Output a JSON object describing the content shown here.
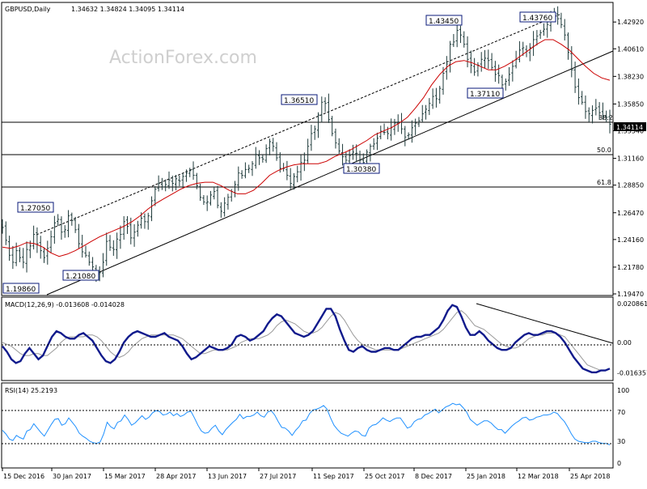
{
  "chart_data": [
    {
      "type": "candlestick",
      "symbol_header": "GBPUSD,Daily",
      "ohlc_header": "1.34632 1.34824 1.34095 1.34114",
      "watermark": "ActionForex.com",
      "current_price_label": "1.34114",
      "ylim": [
        1.1947,
        1.4426
      ],
      "y_ticks": [
        "1.42920",
        "1.40610",
        "1.38230",
        "1.35850",
        "1.33540",
        "1.31160",
        "1.28850",
        "1.26470",
        "1.24160",
        "1.21780",
        "1.19470"
      ],
      "x_ticks": [
        "15 Dec 2016",
        "30 Jan 2017",
        "15 Mar 2017",
        "28 Apr 2017",
        "13 Jun 2017",
        "27 Jul 2017",
        "11 Sep 2017",
        "25 Oct 2017",
        "8 Dec 2017",
        "25 Jan 2018",
        "12 Mar 2018",
        "25 Apr 2018"
      ],
      "price_labels": [
        {
          "text": "1.19860",
          "value": 1.1986
        },
        {
          "text": "1.27050",
          "value": 1.2705
        },
        {
          "text": "1.21080",
          "value": 1.2108
        },
        {
          "text": "1.36510",
          "value": 1.3651
        },
        {
          "text": "1.30380",
          "value": 1.3038
        },
        {
          "text": "1.43450",
          "value": 1.4345
        },
        {
          "text": "1.37110",
          "value": 1.3711
        },
        {
          "text": "1.43760",
          "value": 1.4376
        }
      ],
      "fib_levels": [
        {
          "label": "38.2",
          "value": 1.3455
        },
        {
          "label": "50.0",
          "value": 1.3205
        },
        {
          "label": "61.8",
          "value": 1.288
        }
      ],
      "series": [
        {
          "name": "price",
          "closes": [
            1.252,
            1.241,
            1.228,
            1.222,
            1.232,
            1.226,
            1.222,
            1.233,
            1.236,
            1.246,
            1.238,
            1.232,
            1.226,
            1.234,
            1.244,
            1.256,
            1.259,
            1.248,
            1.25,
            1.262,
            1.258,
            1.25,
            1.238,
            1.231,
            1.228,
            1.222,
            1.218,
            1.213,
            1.213,
            1.222,
            1.24,
            1.235,
            1.233,
            1.242,
            1.246,
            1.257,
            1.253,
            1.243,
            1.248,
            1.254,
            1.26,
            1.257,
            1.262,
            1.275,
            1.285,
            1.29,
            1.287,
            1.289,
            1.293,
            1.29,
            1.294,
            1.292,
            1.296,
            1.299,
            1.301,
            1.297,
            1.288,
            1.278,
            1.274,
            1.274,
            1.28,
            1.283,
            1.271,
            1.266,
            1.273,
            1.278,
            1.283,
            1.289,
            1.299,
            1.297,
            1.302,
            1.303,
            1.307,
            1.315,
            1.312,
            1.311,
            1.32,
            1.326,
            1.322,
            1.312,
            1.303,
            1.303,
            1.297,
            1.29,
            1.296,
            1.3,
            1.308,
            1.31,
            1.322,
            1.333,
            1.337,
            1.349,
            1.36,
            1.359,
            1.345,
            1.333,
            1.325,
            1.318,
            1.313,
            1.31,
            1.314,
            1.317,
            1.316,
            1.31,
            1.308,
            1.317,
            1.322,
            1.324,
            1.329,
            1.335,
            1.334,
            1.333,
            1.338,
            1.342,
            1.343,
            1.337,
            1.33,
            1.332,
            1.338,
            1.342,
            1.344,
            1.35,
            1.354,
            1.359,
            1.365,
            1.363,
            1.372,
            1.385,
            1.393,
            1.41,
            1.412,
            1.422,
            1.418,
            1.41,
            1.397,
            1.392,
            1.386,
            1.392,
            1.397,
            1.398,
            1.396,
            1.39,
            1.384,
            1.383,
            1.375,
            1.378,
            1.384,
            1.391,
            1.397,
            1.405,
            1.407,
            1.404,
            1.407,
            1.414,
            1.417,
            1.42,
            1.423,
            1.427,
            1.434,
            1.435,
            1.432,
            1.427,
            1.418,
            1.403,
            1.388,
            1.373,
            1.364,
            1.36,
            1.352,
            1.35,
            1.353,
            1.355,
            1.351,
            1.348,
            1.347,
            1.341
          ]
        },
        {
          "name": "sma",
          "values": [
            1.235,
            1.234,
            1.236,
            1.239,
            1.238,
            1.235,
            1.23,
            1.227,
            1.229,
            1.232,
            1.236,
            1.24,
            1.244,
            1.247,
            1.25,
            1.253,
            1.257,
            1.262,
            1.268,
            1.273,
            1.277,
            1.281,
            1.285,
            1.288,
            1.29,
            1.291,
            1.291,
            1.288,
            1.284,
            1.281,
            1.281,
            1.284,
            1.29,
            1.297,
            1.301,
            1.304,
            1.306,
            1.307,
            1.307,
            1.307,
            1.309,
            1.313,
            1.316,
            1.319,
            1.323,
            1.327,
            1.332,
            1.335,
            1.338,
            1.342,
            1.347,
            1.355,
            1.364,
            1.375,
            1.384,
            1.391,
            1.395,
            1.396,
            1.394,
            1.391,
            1.388,
            1.388,
            1.391,
            1.395,
            1.4,
            1.405,
            1.41,
            1.414,
            1.414,
            1.41,
            1.405,
            1.398,
            1.391,
            1.385,
            1.381,
            1.379
          ]
        }
      ]
    },
    {
      "type": "line",
      "header": "MACD(12,26,9) -0.013608 -0.014028",
      "ylim": [
        -0.0195,
        0.0225
      ],
      "y_ticks": [
        "0.020861",
        "0.00",
        "-0.016357"
      ],
      "series": [
        {
          "name": "macd",
          "values": [
            -0.002,
            -0.005,
            -0.009,
            -0.011,
            -0.01,
            -0.006,
            -0.003,
            -0.006,
            -0.009,
            -0.007,
            -0.002,
            0.003,
            0.006,
            0.005,
            0.003,
            0.002,
            0.002,
            0.004,
            0.005,
            0.003,
            0.001,
            -0.003,
            -0.007,
            -0.01,
            -0.011,
            -0.009,
            -0.005,
            0.0,
            0.003,
            0.005,
            0.006,
            0.005,
            0.004,
            0.003,
            0.003,
            0.004,
            0.005,
            0.003,
            0.002,
            0.001,
            -0.002,
            -0.006,
            -0.009,
            -0.008,
            -0.006,
            -0.004,
            -0.002,
            -0.003,
            -0.004,
            -0.004,
            -0.003,
            -0.001,
            0.003,
            0.004,
            0.003,
            0.001,
            0.002,
            0.004,
            0.006,
            0.01,
            0.013,
            0.015,
            0.014,
            0.011,
            0.008,
            0.005,
            0.004,
            0.003,
            0.004,
            0.006,
            0.01,
            0.014,
            0.018,
            0.018,
            0.014,
            0.007,
            0.001,
            -0.004,
            -0.005,
            -0.003,
            -0.002,
            -0.004,
            -0.005,
            -0.005,
            -0.004,
            -0.003,
            -0.003,
            -0.004,
            -0.004,
            -0.002,
            0.0,
            0.002,
            0.003,
            0.003,
            0.004,
            0.004,
            0.006,
            0.008,
            0.012,
            0.017,
            0.02,
            0.019,
            0.014,
            0.008,
            0.004,
            0.004,
            0.006,
            0.004,
            0.001,
            -0.001,
            -0.003,
            -0.004,
            -0.004,
            -0.003,
            0.0,
            0.002,
            0.004,
            0.005,
            0.004,
            0.004,
            0.005,
            0.006,
            0.006,
            0.005,
            0.003,
            0.0,
            -0.004,
            -0.008,
            -0.011,
            -0.014,
            -0.015,
            -0.016,
            -0.016,
            -0.015,
            -0.015,
            -0.014
          ]
        },
        {
          "name": "signal",
          "values": [
            0.0,
            -0.001,
            -0.002,
            -0.004,
            -0.006,
            -0.007,
            -0.007,
            -0.006,
            -0.006,
            -0.007,
            -0.007,
            -0.005,
            -0.003,
            0.0,
            0.002,
            0.003,
            0.003,
            0.003,
            0.003,
            0.004,
            0.004,
            0.003,
            0.001,
            -0.002,
            -0.005,
            -0.007,
            -0.008,
            -0.007,
            -0.005,
            -0.002,
            0.0,
            0.002,
            0.003,
            0.004,
            0.004,
            0.004,
            0.004,
            0.004,
            0.004,
            0.003,
            0.002,
            0.0,
            -0.002,
            -0.004,
            -0.006,
            -0.006,
            -0.005,
            -0.004,
            -0.004,
            -0.004,
            -0.004,
            -0.003,
            -0.002,
            0.0,
            0.001,
            0.002,
            0.002,
            0.002,
            0.003,
            0.004,
            0.006,
            0.009,
            0.011,
            0.012,
            0.011,
            0.01,
            0.008,
            0.006,
            0.005,
            0.005,
            0.006,
            0.008,
            0.011,
            0.014,
            0.016,
            0.015,
            0.012,
            0.008,
            0.004,
            0.001,
            -0.001,
            -0.002,
            -0.003,
            -0.004,
            -0.004,
            -0.004,
            -0.004,
            -0.004,
            -0.004,
            -0.003,
            -0.002,
            -0.001,
            0.0,
            0.001,
            0.002,
            0.003,
            0.004,
            0.005,
            0.007,
            0.01,
            0.013,
            0.016,
            0.017,
            0.015,
            0.012,
            0.009,
            0.008,
            0.007,
            0.005,
            0.003,
            0.001,
            -0.001,
            -0.002,
            -0.003,
            -0.003,
            -0.002,
            0.0,
            0.002,
            0.003,
            0.004,
            0.004,
            0.005,
            0.005,
            0.005,
            0.004,
            0.003,
            0.0,
            -0.003,
            -0.006,
            -0.009,
            -0.012,
            -0.013,
            -0.014,
            -0.015,
            -0.015,
            -0.014
          ]
        }
      ]
    },
    {
      "type": "line",
      "header": "RSI(14) 25.2193",
      "ylim": [
        0,
        100
      ],
      "y_ticks": [
        100,
        70,
        30,
        0
      ],
      "series": [
        {
          "name": "rsi",
          "values": [
            45,
            40,
            33,
            31,
            38,
            35,
            33,
            44,
            46,
            54,
            48,
            42,
            37,
            45,
            53,
            60,
            61,
            52,
            54,
            62,
            56,
            50,
            41,
            37,
            34,
            30,
            28,
            27,
            29,
            40,
            56,
            50,
            47,
            56,
            58,
            66,
            60,
            52,
            55,
            60,
            65,
            60,
            63,
            69,
            72,
            71,
            66,
            67,
            70,
            65,
            68,
            64,
            66,
            70,
            71,
            62,
            52,
            44,
            41,
            42,
            48,
            52,
            44,
            39,
            46,
            51,
            56,
            60,
            67,
            61,
            64,
            64,
            66,
            70,
            65,
            63,
            70,
            72,
            66,
            57,
            49,
            48,
            44,
            38,
            45,
            50,
            58,
            59,
            68,
            73,
            74,
            76,
            79,
            74,
            62,
            52,
            46,
            41,
            39,
            37,
            41,
            44,
            43,
            38,
            37,
            48,
            52,
            53,
            57,
            62,
            59,
            57,
            60,
            62,
            62,
            55,
            48,
            50,
            57,
            60,
            61,
            66,
            68,
            71,
            74,
            69,
            73,
            77,
            79,
            82,
            80,
            81,
            76,
            70,
            60,
            56,
            52,
            55,
            58,
            58,
            55,
            50,
            46,
            46,
            41,
            46,
            51,
            55,
            58,
            62,
            63,
            59,
            60,
            63,
            64,
            66,
            66,
            67,
            70,
            68,
            62,
            57,
            49,
            40,
            33,
            30,
            29,
            28,
            28,
            30,
            30,
            28,
            27,
            27,
            25
          ]
        }
      ]
    }
  ]
}
